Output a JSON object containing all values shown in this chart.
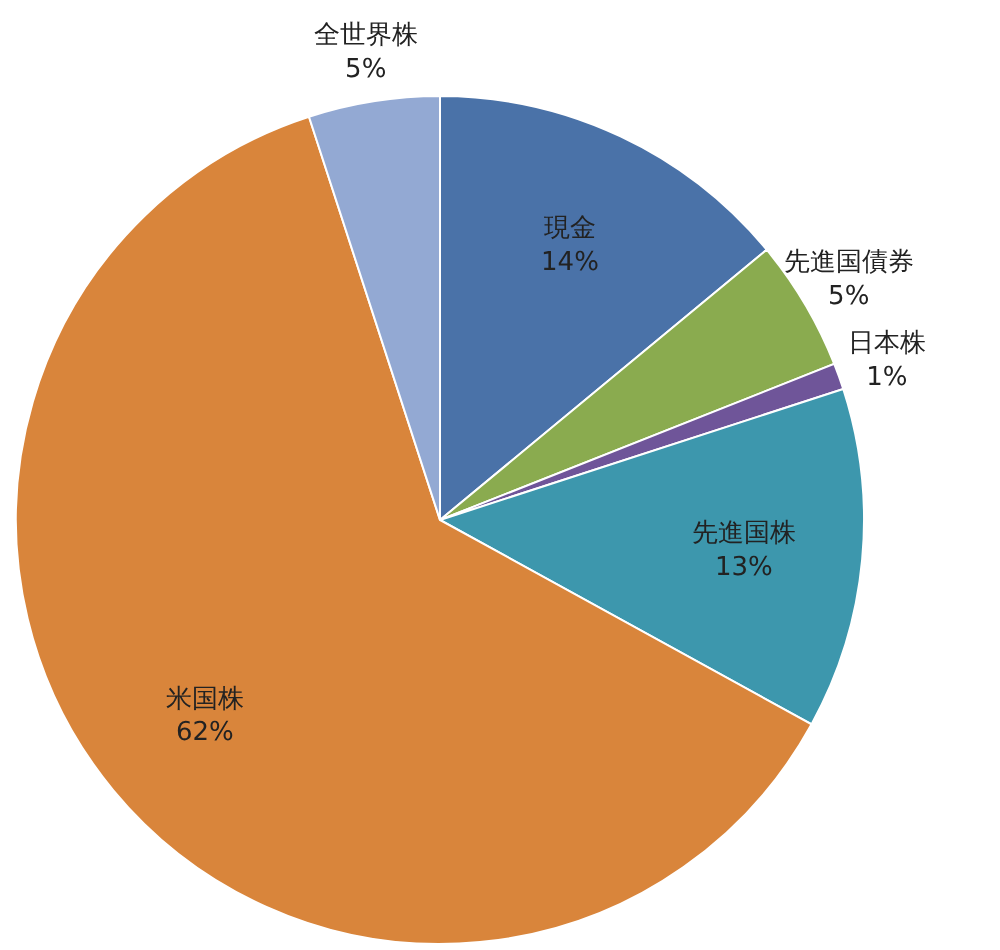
{
  "chart_data": {
    "type": "pie",
    "categories": [
      "現金",
      "先進国債券",
      "日本株",
      "先進国株",
      "米国株",
      "全世界株"
    ],
    "values": [
      14,
      5,
      1,
      13,
      62,
      5
    ],
    "value_labels": [
      "14%",
      "5%",
      "1%",
      "13%",
      "62%",
      "5%"
    ],
    "colors": [
      "#4a72a8",
      "#8aab4f",
      "#6f5599",
      "#3d97ad",
      "#d9853b",
      "#93a9d3"
    ]
  }
}
